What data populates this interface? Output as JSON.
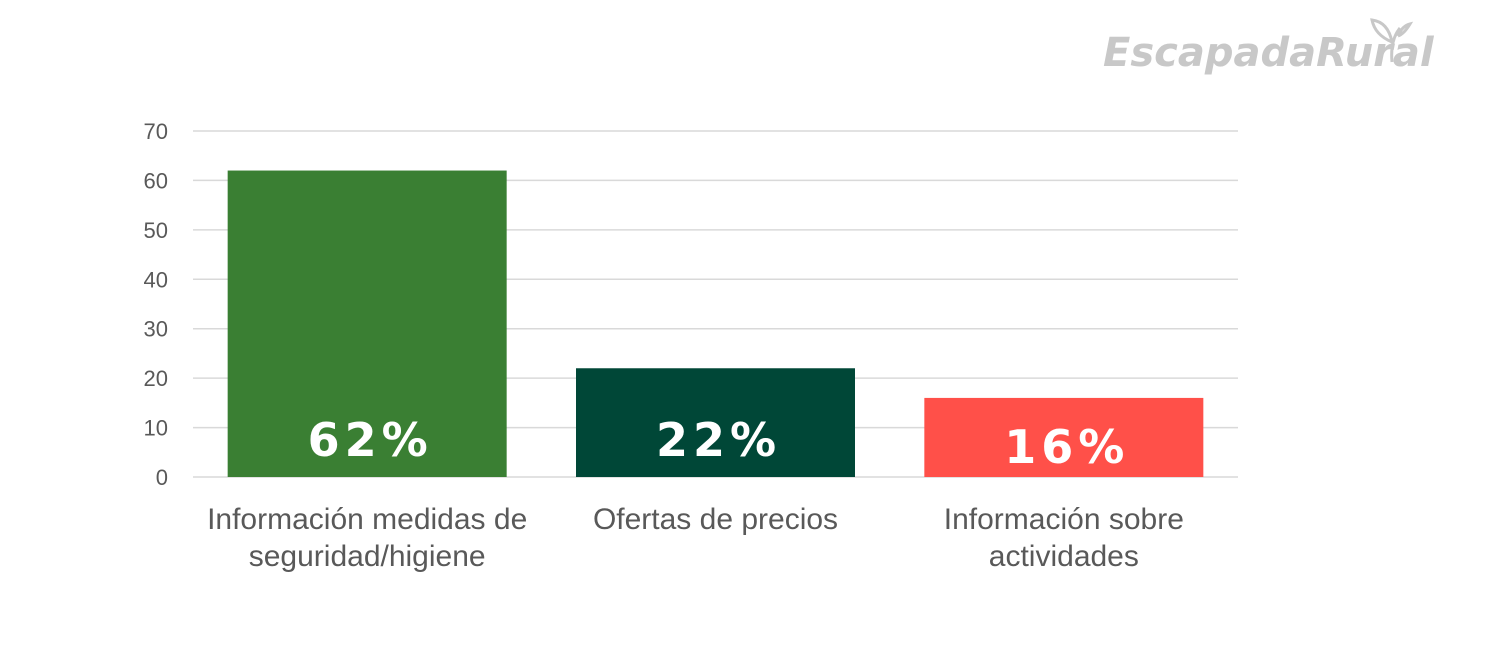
{
  "logo": {
    "text": "EscapadaRural"
  },
  "chart_data": {
    "type": "bar",
    "title": "",
    "xlabel": "",
    "ylabel": "",
    "ylim": [
      0,
      70
    ],
    "yticks": [
      0,
      10,
      20,
      30,
      40,
      50,
      60,
      70
    ],
    "grid": true,
    "categories": [
      [
        "Información medidas de",
        "seguridad/higiene"
      ],
      [
        "Ofertas de precios"
      ],
      [
        "Información sobre",
        "actividades"
      ]
    ],
    "values": [
      62,
      22,
      16
    ],
    "data_labels": [
      "62%",
      "22%",
      "16%"
    ],
    "colors": [
      "#3a7f33",
      "#004737",
      "#ff5049"
    ]
  }
}
